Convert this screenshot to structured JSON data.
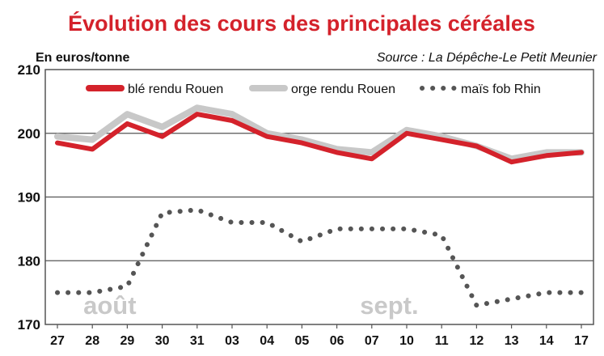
{
  "chart_data": {
    "type": "line",
    "title": "Évolution des cours des principales céréales",
    "ylabel": "En euros/tonne",
    "source": "Source : La Dépêche-Le Petit Meunier",
    "ylim": [
      170,
      210
    ],
    "yticks": [
      170,
      180,
      190,
      200,
      210
    ],
    "categories": [
      "27",
      "28",
      "29",
      "30",
      "31",
      "03",
      "04",
      "05",
      "06",
      "07",
      "10",
      "11",
      "12",
      "13",
      "14",
      "17"
    ],
    "annotations": [
      {
        "text": "août",
        "category_index": 1.5
      },
      {
        "text": "sept.",
        "category_index": 9.5
      }
    ],
    "legend_position": "top",
    "grid": true,
    "series": [
      {
        "name": "orge rendu Rouen",
        "color": "#c8c8c8",
        "style": "solid",
        "values": [
          199.5,
          199,
          203,
          201,
          204,
          203,
          200,
          199,
          197.5,
          197,
          200.5,
          199.5,
          198,
          196,
          197,
          197
        ]
      },
      {
        "name": "blé rendu Rouen",
        "color": "#d4222b",
        "style": "solid",
        "values": [
          198.5,
          197.5,
          201.5,
          199.5,
          203,
          202,
          199.5,
          198.5,
          197,
          196,
          200,
          199,
          198,
          195.5,
          196.5,
          197
        ]
      },
      {
        "name": "maïs fob Rhin",
        "color": "#555555",
        "style": "dotted",
        "values": [
          175,
          175,
          176,
          187.5,
          188,
          186,
          186,
          183,
          185,
          185,
          185,
          184,
          173,
          174,
          175,
          175
        ]
      }
    ],
    "legend_order": [
      "blé rendu Rouen",
      "orge rendu Rouen",
      "maïs fob Rhin"
    ]
  }
}
